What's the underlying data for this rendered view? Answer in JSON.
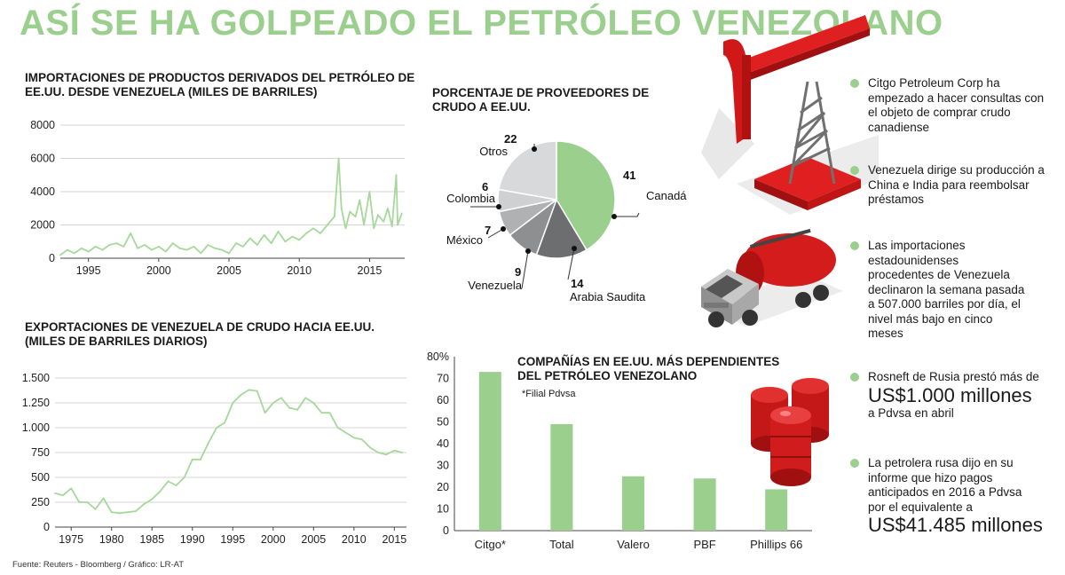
{
  "title": "ASÍ SE HA GOLPEADO EL PETRÓLEO VENEZOLANO",
  "colors": {
    "accent": "#9bcf8e",
    "line": "#a6d89a",
    "pie_gray1": "#6d6e70",
    "pie_gray2": "#8e8f91",
    "pie_gray3": "#b0b1b3",
    "pie_gray4": "#cfd0d1"
  },
  "source": "Fuente: Reuters - Bloomberg / Gráfico: LR-AT",
  "bullets": {
    "b1": "Citgo Petroleum Corp ha empezado a hacer consultas con el objeto de comprar crudo canadiense",
    "b2": "Venezuela dirige su producción a China e India para reembolsar préstamos",
    "b3": "Las importaciones estadounidenses procedentes de Venezuela declinaron la semana pasada a 507.000 barriles por día, el nivel más bajo en cinco meses",
    "b4_pre": "Rosneft de Rusia prestó más de",
    "b4_big": "US$1.000 millones",
    "b4_post": "a Pdvsa en abril",
    "b5_pre": "La petrolera rusa dijo en su informe que hizo pagos anticipados en 2016 a Pdvsa por el equivalente a",
    "b5_big": "US$41.485 millones"
  },
  "chart_data": [
    {
      "id": "imports",
      "type": "line",
      "title": "IMPORTACIONES DE PRODUCTOS DERIVADOS DEL PETRÓLEO DE EE.UU. DESDE VENEZUELA (MILES DE BARRILES)",
      "ylim": [
        0,
        8000
      ],
      "yticks": [
        0,
        2000,
        4000,
        6000,
        8000
      ],
      "yticklabels": [
        "0",
        "2000",
        "4000",
        "6000",
        "8000"
      ],
      "xlim": [
        1993,
        2017.5
      ],
      "xticks": [
        1995,
        2000,
        2005,
        2010,
        2015
      ],
      "x": [
        1993,
        1993.5,
        1994,
        1994.5,
        1995,
        1995.5,
        1996,
        1996.5,
        1997,
        1997.5,
        1998,
        1998.5,
        1999,
        1999.5,
        2000,
        2000.5,
        2001,
        2001.5,
        2002,
        2002.5,
        2003,
        2003.5,
        2004,
        2004.5,
        2005,
        2005.5,
        2006,
        2006.5,
        2007,
        2007.5,
        2008,
        2008.5,
        2009,
        2009.5,
        2010,
        2010.5,
        2011,
        2011.5,
        2012,
        2012.5,
        2012.8,
        2013,
        2013.3,
        2013.6,
        2014,
        2014.3,
        2014.6,
        2015,
        2015.3,
        2015.6,
        2016,
        2016.3,
        2016.6,
        2016.9,
        2017,
        2017.3
      ],
      "values": [
        200,
        500,
        300,
        600,
        400,
        700,
        500,
        800,
        900,
        700,
        1500,
        600,
        800,
        500,
        700,
        400,
        900,
        600,
        500,
        700,
        300,
        800,
        600,
        500,
        300,
        900,
        700,
        1200,
        800,
        1400,
        900,
        1600,
        1000,
        1300,
        1100,
        1500,
        1800,
        1500,
        2000,
        2500,
        6000,
        3000,
        1800,
        2800,
        2500,
        3500,
        2000,
        4000,
        1800,
        2600,
        2200,
        3000,
        1900,
        5000,
        2000,
        2700
      ]
    },
    {
      "id": "pie",
      "type": "pie",
      "title": "PORCENTAJE DE PROVEEDORES DE CRUDO A EE.UU.",
      "labels": [
        "Canadá",
        "Arabia Saudita",
        "Venezuela",
        "México",
        "Colombia",
        "Otros"
      ],
      "values": [
        41,
        14,
        9,
        7,
        6,
        22
      ]
    },
    {
      "id": "exports",
      "type": "line",
      "title": "EXPORTACIONES DE VENEZUELA DE CRUDO HACIA EE.UU. (MILES DE BARRILES DIARIOS)",
      "ylim": [
        0,
        1500
      ],
      "yticks": [
        0,
        250,
        500,
        750,
        1000,
        1250,
        1500
      ],
      "yticklabels": [
        "0",
        "250",
        "500",
        "750",
        "1.000",
        "1.250",
        "1.500"
      ],
      "xlim": [
        1973,
        2016.5
      ],
      "xticks": [
        1975,
        1980,
        1985,
        1990,
        1995,
        2000,
        2005,
        2010,
        2015
      ],
      "x": [
        1973,
        1974,
        1975,
        1976,
        1977,
        1978,
        1979,
        1980,
        1981,
        1982,
        1983,
        1984,
        1985,
        1986,
        1987,
        1988,
        1989,
        1990,
        1991,
        1992,
        1993,
        1994,
        1995,
        1996,
        1997,
        1998,
        1999,
        2000,
        2001,
        2002,
        2003,
        2004,
        2005,
        2006,
        2007,
        2008,
        2009,
        2010,
        2011,
        2012,
        2013,
        2014,
        2015,
        2016
      ],
      "values": [
        340,
        320,
        390,
        250,
        250,
        180,
        290,
        150,
        140,
        150,
        160,
        230,
        280,
        360,
        460,
        420,
        500,
        680,
        680,
        850,
        1000,
        1050,
        1250,
        1330,
        1380,
        1370,
        1150,
        1250,
        1300,
        1200,
        1180,
        1300,
        1250,
        1150,
        1150,
        1000,
        950,
        900,
        880,
        800,
        750,
        730,
        770,
        750
      ]
    },
    {
      "id": "companies",
      "type": "bar",
      "title": "COMPAÑÍAS EN EE.UU. MÁS DEPENDIENTES DEL PETRÓLEO VENEZOLANO",
      "note": "*Filial Pdvsa",
      "categories": [
        "Citgo*",
        "Total",
        "Valero",
        "PBF",
        "Phillips 66"
      ],
      "values": [
        73,
        49,
        25,
        24,
        19
      ],
      "ylim": [
        0,
        80
      ],
      "yticks": [
        0,
        10,
        20,
        30,
        40,
        50,
        60,
        70,
        80
      ],
      "yticklabels": [
        "0",
        "10",
        "20",
        "30",
        "40",
        "50",
        "60",
        "70",
        "80%"
      ]
    }
  ]
}
